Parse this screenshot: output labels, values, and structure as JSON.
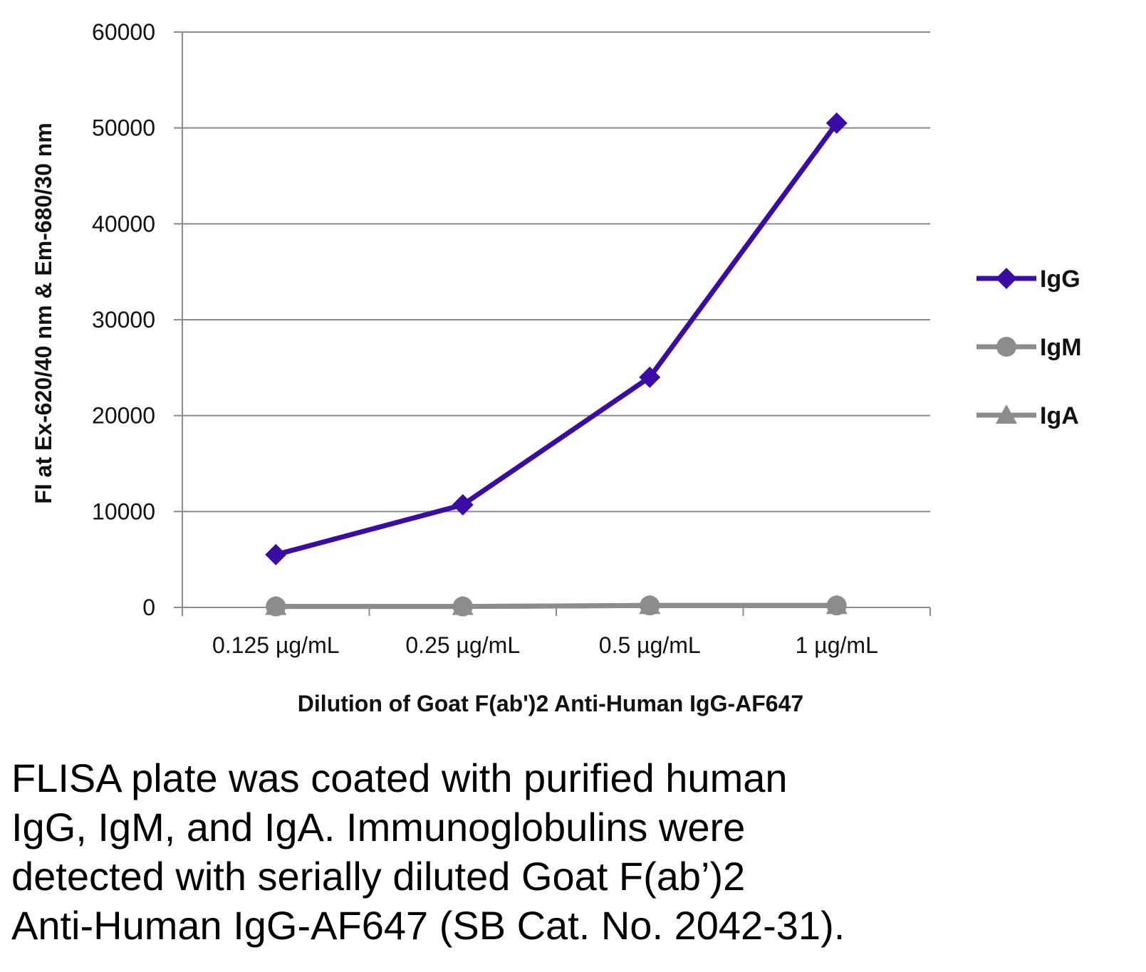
{
  "chart_data": {
    "type": "line",
    "title": "",
    "xlabel": "Dilution of Goat F(ab')2 Anti-Human IgG-AF647",
    "ylabel": "FI at Ex-620/40 nm & Em-680/30 nm",
    "categories": [
      "0.125 µg/mL",
      "0.25 µg/mL",
      "0.5 µg/mL",
      "1 µg/mL"
    ],
    "ylim": [
      0,
      60000
    ],
    "yticks": [
      0,
      10000,
      20000,
      30000,
      40000,
      50000,
      60000
    ],
    "grid": true,
    "legend_position": "right",
    "series": [
      {
        "name": "IgG",
        "values": [
          5500,
          10700,
          24000,
          50500
        ],
        "color": "#3a0ca3",
        "marker": "diamond"
      },
      {
        "name": "IgM",
        "values": [
          100,
          100,
          200,
          200
        ],
        "color": "#8c8c8c",
        "marker": "circle"
      },
      {
        "name": "IgA",
        "values": [
          100,
          100,
          200,
          200
        ],
        "color": "#8c8c8c",
        "marker": "triangle"
      }
    ]
  },
  "caption": {
    "lines": [
      "FLISA plate was coated with purified human",
      "IgG, IgM, and IgA.  Immunoglobulins were",
      "detected with serially diluted Goat F(ab’)2",
      "Anti-Human IgG-AF647 (SB Cat. No. 2042-31)."
    ]
  }
}
